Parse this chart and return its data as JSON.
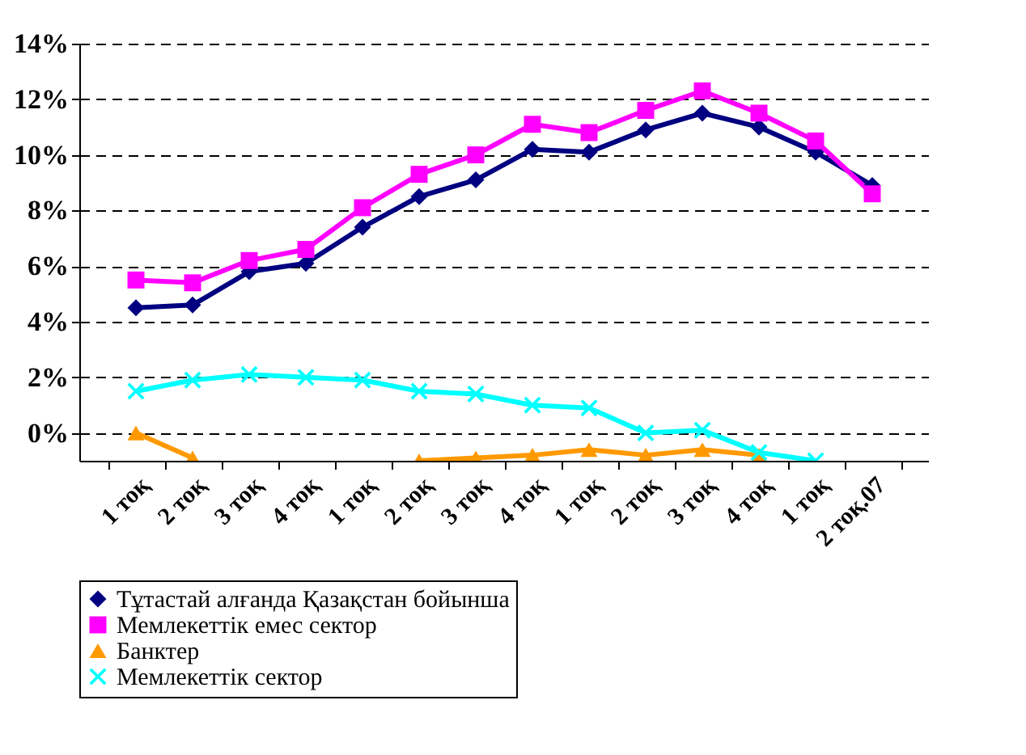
{
  "chart_data": {
    "type": "line",
    "categories": [
      "1 тоқ",
      "2 тоқ",
      "3 тоқ",
      "4 тоқ",
      "1 тоқ",
      "2 тоқ",
      "3 тоқ",
      "4 тоқ",
      "1 тоқ",
      "2 тоқ",
      "3 тоқ",
      "4 тоқ",
      "1 тоқ",
      "2 тоқ.07"
    ],
    "series": [
      {
        "name": "Тұтастай алғанда Қазақстан бойынша",
        "color": "#000080",
        "marker": "diamond",
        "values": [
          4.5,
          4.6,
          5.8,
          6.1,
          7.4,
          8.5,
          9.1,
          10.2,
          10.1,
          10.9,
          11.5,
          11.0,
          10.1,
          8.9
        ]
      },
      {
        "name": "Мемлекеттік емес сектор",
        "color": "#ff00ff",
        "marker": "square",
        "values": [
          5.5,
          5.4,
          6.2,
          6.6,
          8.1,
          9.3,
          10.0,
          11.1,
          10.8,
          11.6,
          12.3,
          11.5,
          10.5,
          8.6
        ]
      },
      {
        "name": "Банктер",
        "color": "#ff9900",
        "marker": "triangle",
        "values": [
          0,
          -0.9,
          null,
          null,
          null,
          -1.0,
          -0.9,
          -0.8,
          -0.6,
          -0.8,
          -0.6,
          -0.8,
          null,
          null
        ]
      },
      {
        "name": "Мемлекеттік сектор",
        "color": "#00ffff",
        "marker": "cross",
        "values": [
          1.5,
          1.9,
          2.1,
          2.0,
          1.9,
          1.5,
          1.4,
          1.0,
          0.9,
          0.0,
          0.1,
          -0.7,
          -1.0,
          null
        ]
      }
    ],
    "ylim": [
      -1,
      14
    ],
    "yticks": [
      {
        "value": 0,
        "label": "0%"
      },
      {
        "value": 2,
        "label": "2%"
      },
      {
        "value": 4,
        "label": "4%"
      },
      {
        "value": 6,
        "label": "6%"
      },
      {
        "value": 8,
        "label": "8%"
      },
      {
        "value": 10,
        "label": "10%"
      },
      {
        "value": 12,
        "label": "12%"
      },
      {
        "value": 14,
        "label": "14%"
      }
    ],
    "grid": "y",
    "legend": "bottom"
  }
}
